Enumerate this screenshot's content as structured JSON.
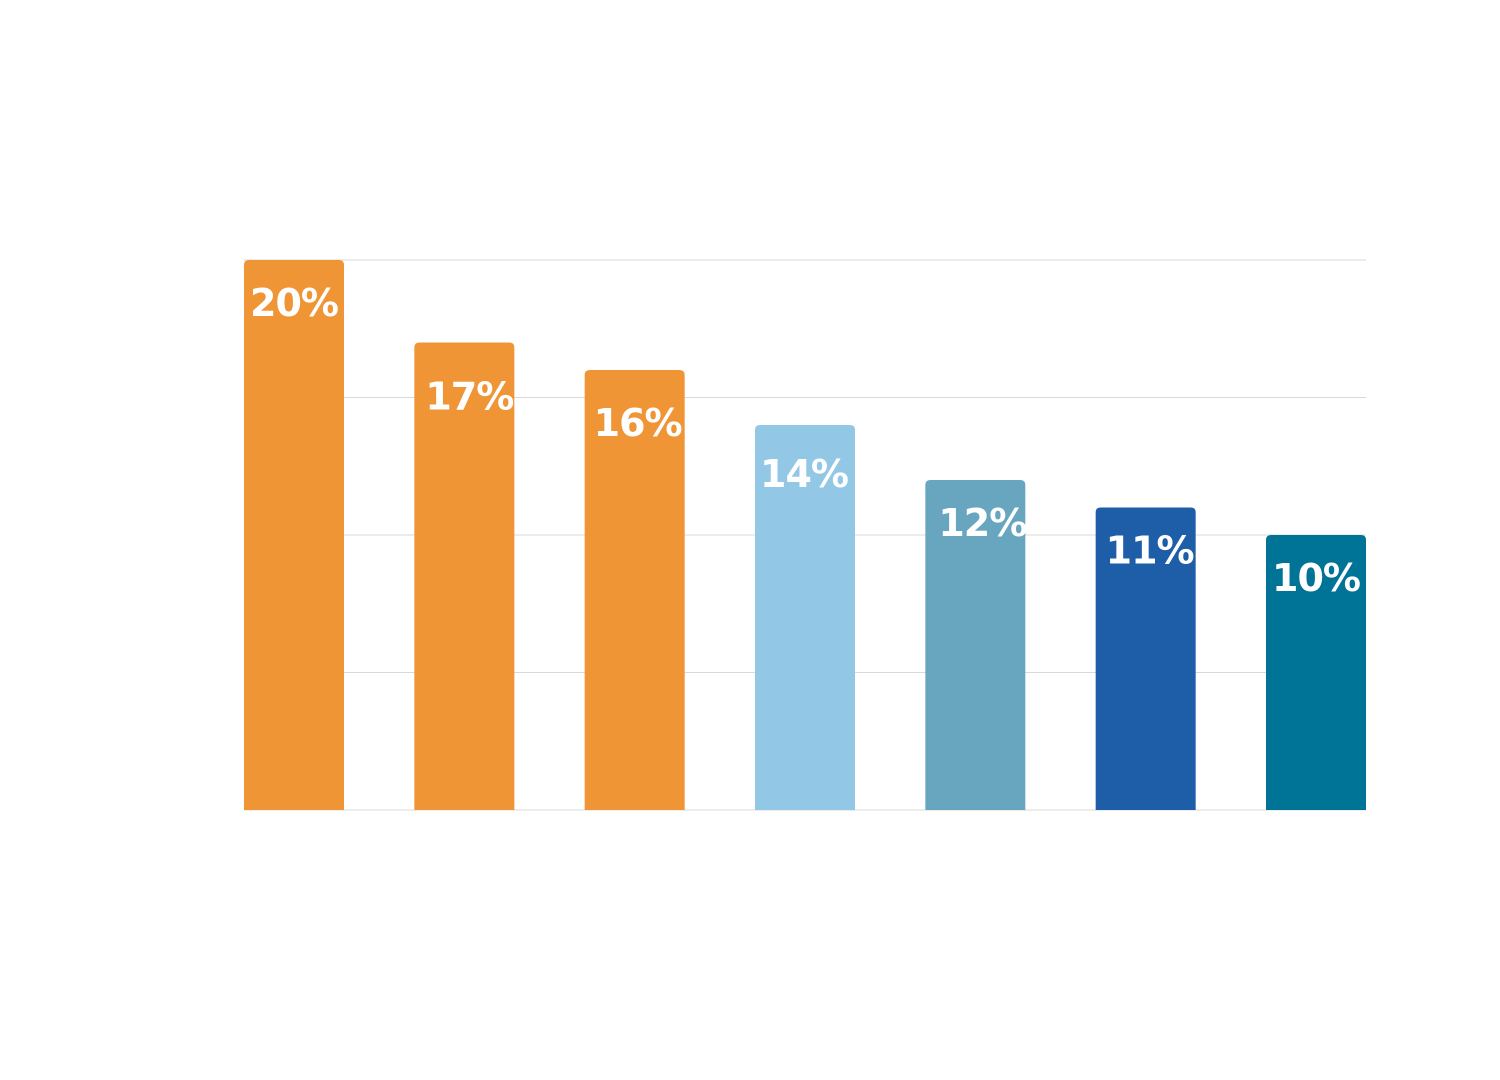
{
  "chart_data": {
    "type": "bar",
    "title": "",
    "xlabel": "",
    "ylabel": "",
    "ylim": [
      0,
      20
    ],
    "grid": true,
    "categories": [
      "",
      "",
      "",
      "",
      "",
      "",
      ""
    ],
    "values": [
      20,
      17,
      16,
      14,
      12,
      11,
      10
    ],
    "labels": [
      "20%",
      "17%",
      "16%",
      "14%",
      "12%",
      "11%",
      "10%"
    ],
    "colors": [
      "#f09535",
      "#f09535",
      "#f09535",
      "#92c7e6",
      "#68a6bf",
      "#1e5ea9",
      "#007496"
    ]
  }
}
